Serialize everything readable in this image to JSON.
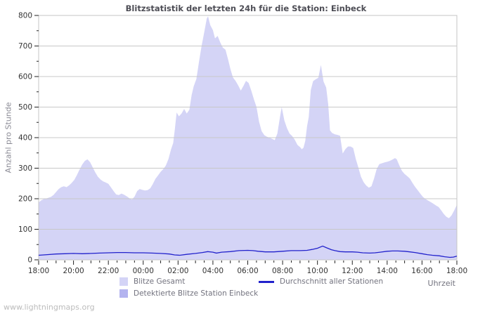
{
  "title": "Blitzstatistik der letzten 24h für die Station: Einbeck",
  "watermark": "www.lightningmaps.org",
  "axes": {
    "y_label": "Anzahl pro Stunde",
    "x_label": "Uhrzeit"
  },
  "legend": {
    "total": {
      "label": "Blitze Gesamt"
    },
    "detected": {
      "label": "Detektierte Blitze Station Einbeck"
    },
    "average": {
      "label": "Durchschnitt aller Stationen"
    }
  },
  "colors": {
    "total_fill": "#d4d4f6",
    "detected_fill": "#b3b3ef",
    "average_line": "#2222cc",
    "grid": "#c8c8c8",
    "frame": "#c4c4c4",
    "tick": "#222222"
  },
  "chart_data": {
    "type": "area",
    "title": "Blitzstatistik der letzten 24h für die Station: Einbeck",
    "xlabel": "Uhrzeit",
    "ylabel": "Anzahl pro Stunde",
    "ylim": [
      0,
      800
    ],
    "ytick_step": 100,
    "ytick_labels": [
      "0",
      "100",
      "200",
      "300",
      "400",
      "500",
      "600",
      "700",
      "800"
    ],
    "x_span_hours": 24,
    "xtick_step_hours": 2,
    "xtick_labels": [
      "18:00",
      "20:00",
      "22:00",
      "00:00",
      "02:00",
      "04:00",
      "06:00",
      "08:00",
      "10:00",
      "12:00",
      "14:00",
      "16:00",
      "18:00"
    ],
    "grid": "horizontal",
    "legend_position": "bottom",
    "series": [
      {
        "name": "Blitze Gesamt",
        "type": "area",
        "color_key": "total_fill",
        "points": [
          [
            0,
            188
          ],
          [
            0.15,
            195
          ],
          [
            0.3,
            199
          ],
          [
            0.5,
            202
          ],
          [
            0.7,
            206
          ],
          [
            0.85,
            212
          ],
          [
            1,
            222
          ],
          [
            1.15,
            232
          ],
          [
            1.3,
            238
          ],
          [
            1.45,
            241
          ],
          [
            1.6,
            238
          ],
          [
            1.75,
            244
          ],
          [
            1.9,
            252
          ],
          [
            2.05,
            262
          ],
          [
            2.2,
            278
          ],
          [
            2.35,
            296
          ],
          [
            2.5,
            312
          ],
          [
            2.65,
            324
          ],
          [
            2.8,
            329
          ],
          [
            2.95,
            320
          ],
          [
            3.1,
            303
          ],
          [
            3.25,
            286
          ],
          [
            3.4,
            272
          ],
          [
            3.55,
            263
          ],
          [
            3.7,
            257
          ],
          [
            3.85,
            253
          ],
          [
            4,
            249
          ],
          [
            4.15,
            237
          ],
          [
            4.3,
            225
          ],
          [
            4.45,
            214
          ],
          [
            4.6,
            212
          ],
          [
            4.75,
            217
          ],
          [
            4.9,
            213
          ],
          [
            5.05,
            208
          ],
          [
            5.2,
            202
          ],
          [
            5.35,
            197
          ],
          [
            5.5,
            207
          ],
          [
            5.65,
            225
          ],
          [
            5.8,
            232
          ],
          [
            5.95,
            229
          ],
          [
            6.1,
            227
          ],
          [
            6.25,
            228
          ],
          [
            6.4,
            234
          ],
          [
            6.55,
            248
          ],
          [
            6.7,
            265
          ],
          [
            6.85,
            276
          ],
          [
            7,
            288
          ],
          [
            7.15,
            297
          ],
          [
            7.3,
            309
          ],
          [
            7.45,
            330
          ],
          [
            7.6,
            362
          ],
          [
            7.72,
            382
          ],
          [
            7.82,
            430
          ],
          [
            7.92,
            482
          ],
          [
            8.05,
            470
          ],
          [
            8.2,
            479
          ],
          [
            8.35,
            494
          ],
          [
            8.5,
            479
          ],
          [
            8.65,
            491
          ],
          [
            8.78,
            540
          ],
          [
            8.9,
            568
          ],
          [
            9.05,
            592
          ],
          [
            9.2,
            648
          ],
          [
            9.35,
            700
          ],
          [
            9.5,
            744
          ],
          [
            9.65,
            790
          ],
          [
            9.72,
            797
          ],
          [
            9.85,
            768
          ],
          [
            10,
            752
          ],
          [
            10.12,
            725
          ],
          [
            10.27,
            733
          ],
          [
            10.42,
            712
          ],
          [
            10.57,
            695
          ],
          [
            10.72,
            688
          ],
          [
            10.87,
            656
          ],
          [
            11,
            626
          ],
          [
            11.15,
            597
          ],
          [
            11.3,
            586
          ],
          [
            11.45,
            571
          ],
          [
            11.6,
            554
          ],
          [
            11.75,
            569
          ],
          [
            11.9,
            586
          ],
          [
            12.05,
            579
          ],
          [
            12.2,
            554
          ],
          [
            12.35,
            526
          ],
          [
            12.5,
            501
          ],
          [
            12.65,
            452
          ],
          [
            12.8,
            421
          ],
          [
            12.95,
            408
          ],
          [
            13.1,
            403
          ],
          [
            13.25,
            400
          ],
          [
            13.4,
            396
          ],
          [
            13.55,
            392
          ],
          [
            13.7,
            413
          ],
          [
            13.85,
            468
          ],
          [
            13.95,
            500
          ],
          [
            14.1,
            456
          ],
          [
            14.25,
            431
          ],
          [
            14.4,
            413
          ],
          [
            14.55,
            405
          ],
          [
            14.7,
            393
          ],
          [
            14.85,
            376
          ],
          [
            15,
            369
          ],
          [
            15.1,
            362
          ],
          [
            15.2,
            367
          ],
          [
            15.3,
            389
          ],
          [
            15.4,
            436
          ],
          [
            15.5,
            468
          ],
          [
            15.62,
            556
          ],
          [
            15.75,
            585
          ],
          [
            15.9,
            591
          ],
          [
            16.05,
            596
          ],
          [
            16.2,
            638
          ],
          [
            16.35,
            584
          ],
          [
            16.5,
            564
          ],
          [
            16.62,
            508
          ],
          [
            16.72,
            424
          ],
          [
            16.85,
            415
          ],
          [
            17,
            411
          ],
          [
            17.15,
            409
          ],
          [
            17.3,
            406
          ],
          [
            17.45,
            348
          ],
          [
            17.6,
            362
          ],
          [
            17.75,
            371
          ],
          [
            17.9,
            371
          ],
          [
            18.05,
            366
          ],
          [
            18.2,
            330
          ],
          [
            18.35,
            302
          ],
          [
            18.5,
            272
          ],
          [
            18.65,
            254
          ],
          [
            18.8,
            243
          ],
          [
            18.95,
            236
          ],
          [
            19.1,
            241
          ],
          [
            19.25,
            266
          ],
          [
            19.4,
            298
          ],
          [
            19.55,
            313
          ],
          [
            19.7,
            316
          ],
          [
            19.85,
            319
          ],
          [
            20,
            321
          ],
          [
            20.15,
            324
          ],
          [
            20.3,
            328
          ],
          [
            20.45,
            333
          ],
          [
            20.55,
            329
          ],
          [
            20.7,
            309
          ],
          [
            20.85,
            291
          ],
          [
            21,
            281
          ],
          [
            21.15,
            274
          ],
          [
            21.3,
            266
          ],
          [
            21.45,
            252
          ],
          [
            21.6,
            239
          ],
          [
            21.75,
            228
          ],
          [
            21.9,
            217
          ],
          [
            22.05,
            206
          ],
          [
            22.2,
            199
          ],
          [
            22.35,
            194
          ],
          [
            22.5,
            189
          ],
          [
            22.65,
            184
          ],
          [
            22.8,
            178
          ],
          [
            22.95,
            173
          ],
          [
            23.1,
            162
          ],
          [
            23.25,
            150
          ],
          [
            23.4,
            141
          ],
          [
            23.55,
            136
          ],
          [
            23.7,
            146
          ],
          [
            23.85,
            162
          ],
          [
            24,
            180
          ]
        ]
      },
      {
        "name": "Detektierte Blitze Station Einbeck",
        "type": "area",
        "color_key": "detected_fill",
        "points": [
          [
            0,
            0
          ],
          [
            6,
            0
          ],
          [
            12,
            0
          ],
          [
            18,
            0
          ],
          [
            24,
            0
          ]
        ]
      },
      {
        "name": "Durchschnitt aller Stationen",
        "type": "line",
        "color_key": "average_line",
        "points": [
          [
            0,
            15
          ],
          [
            0.5,
            17
          ],
          [
            1,
            19
          ],
          [
            1.5,
            20
          ],
          [
            2,
            21
          ],
          [
            2.5,
            20
          ],
          [
            3,
            21
          ],
          [
            3.5,
            22
          ],
          [
            4,
            23
          ],
          [
            4.5,
            24
          ],
          [
            5,
            24
          ],
          [
            5.5,
            23
          ],
          [
            6,
            23
          ],
          [
            6.5,
            22
          ],
          [
            7,
            21
          ],
          [
            7.5,
            19
          ],
          [
            7.8,
            16
          ],
          [
            8.1,
            15
          ],
          [
            8.5,
            18
          ],
          [
            9,
            21
          ],
          [
            9.4,
            24
          ],
          [
            9.7,
            27
          ],
          [
            10,
            25
          ],
          [
            10.2,
            22
          ],
          [
            10.5,
            25
          ],
          [
            11,
            27
          ],
          [
            11.5,
            30
          ],
          [
            12,
            31
          ],
          [
            12.3,
            30
          ],
          [
            12.6,
            28
          ],
          [
            13,
            26
          ],
          [
            13.5,
            26
          ],
          [
            14,
            28
          ],
          [
            14.5,
            30
          ],
          [
            15,
            30
          ],
          [
            15.4,
            31
          ],
          [
            15.7,
            34
          ],
          [
            16,
            38
          ],
          [
            16.3,
            45
          ],
          [
            16.5,
            40
          ],
          [
            16.8,
            33
          ],
          [
            17,
            30
          ],
          [
            17.3,
            27
          ],
          [
            17.6,
            26
          ],
          [
            18,
            26
          ],
          [
            18.3,
            25
          ],
          [
            18.6,
            23
          ],
          [
            19,
            22
          ],
          [
            19.3,
            23
          ],
          [
            19.6,
            25
          ],
          [
            20,
            28
          ],
          [
            20.3,
            29
          ],
          [
            20.6,
            29
          ],
          [
            21,
            28
          ],
          [
            21.3,
            26
          ],
          [
            21.6,
            24
          ],
          [
            22,
            20
          ],
          [
            22.3,
            17
          ],
          [
            22.6,
            15
          ],
          [
            23,
            13
          ],
          [
            23.3,
            10
          ],
          [
            23.6,
            8
          ],
          [
            23.8,
            9
          ],
          [
            24,
            12
          ]
        ]
      }
    ]
  }
}
